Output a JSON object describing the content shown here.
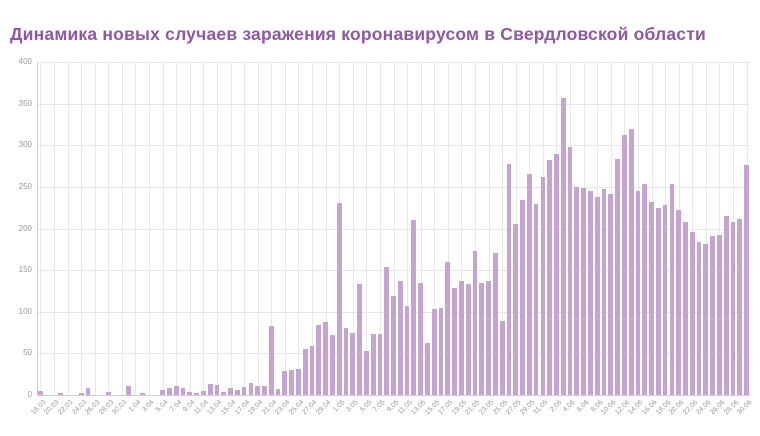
{
  "title": "Динамика новых случаев заражения коронавирусом в Свердловской области",
  "colors": {
    "background": "#ffffff",
    "title": "#8e57a8",
    "bar": "#c6a4d2",
    "grid": "#e7e7e7",
    "axis": "#cfcfcf",
    "tick_text": "#999999"
  },
  "chart_data": {
    "type": "bar",
    "title": "Динамика новых случаев заражения коронавирусом в Свердловской области",
    "xlabel": "",
    "ylabel": "",
    "ylim": [
      0,
      400
    ],
    "yticks": [
      0,
      50,
      100,
      150,
      200,
      250,
      300,
      350,
      400
    ],
    "grid": true,
    "legend": false,
    "x_label_every": 2,
    "categories": [
      "18.03",
      "19.03",
      "20.03",
      "21.03",
      "22.03",
      "23.03",
      "24.03",
      "25.03",
      "26.03",
      "27.03",
      "28.03",
      "29.03",
      "30.03",
      "31.03",
      "1.04",
      "2.04",
      "3.04",
      "4.04",
      "5.04",
      "6.04",
      "7.04",
      "8.04",
      "9.04",
      "10.04",
      "11.04",
      "12.04",
      "13.04",
      "14.04",
      "15.04",
      "16.04",
      "17.04",
      "18.04",
      "19.04",
      "20.04",
      "21.04",
      "22.04",
      "23.04",
      "24.04",
      "25.04",
      "26.04",
      "27.04",
      "28.04",
      "29.04",
      "30.04",
      "1.05",
      "2.05",
      "3.05",
      "4.05",
      "5.05",
      "6.05",
      "7.05",
      "8.05",
      "9.05",
      "10.05",
      "11.05",
      "12.05",
      "13.05",
      "14.05",
      "15.05",
      "16.05",
      "17.05",
      "18.05",
      "19.05",
      "20.05",
      "21.05",
      "22.05",
      "23.05",
      "24.05",
      "25.05",
      "26.05",
      "27.05",
      "28.05",
      "29.05",
      "30.05",
      "31.05",
      "1.06",
      "2.06",
      "3.06",
      "4.06",
      "5.06",
      "6.06",
      "7.06",
      "8.06",
      "9.06",
      "10.06",
      "11.06",
      "12.06",
      "13.06",
      "14.06",
      "15.06",
      "16.06",
      "17.06",
      "18.06",
      "19.06",
      "20.06",
      "21.06",
      "22.06",
      "23.06",
      "24.06",
      "25.06",
      "26.06",
      "27.06",
      "28.06",
      "29.06",
      "30.06"
    ],
    "values": [
      5,
      0,
      0,
      3,
      0,
      0,
      3,
      9,
      0,
      0,
      4,
      0,
      0,
      11,
      0,
      3,
      0,
      0,
      6,
      9,
      11,
      8,
      4,
      2,
      5,
      13,
      12,
      4,
      8,
      6,
      10,
      14,
      11,
      11,
      83,
      7,
      29,
      30,
      31,
      55,
      59,
      84,
      88,
      72,
      231,
      80,
      74,
      133,
      53,
      73,
      73,
      154,
      119,
      137,
      107,
      210,
      134,
      63,
      103,
      105,
      160,
      129,
      137,
      133,
      173,
      135,
      137,
      170,
      89,
      278,
      206,
      234,
      266,
      229,
      262,
      282,
      290,
      357,
      298,
      250,
      249,
      245,
      238,
      248,
      241,
      284,
      312,
      320,
      245,
      253,
      232,
      225,
      228,
      254,
      222,
      208,
      196,
      184,
      181,
      191,
      192,
      215,
      208,
      212,
      276
    ]
  },
  "layout_note": ""
}
